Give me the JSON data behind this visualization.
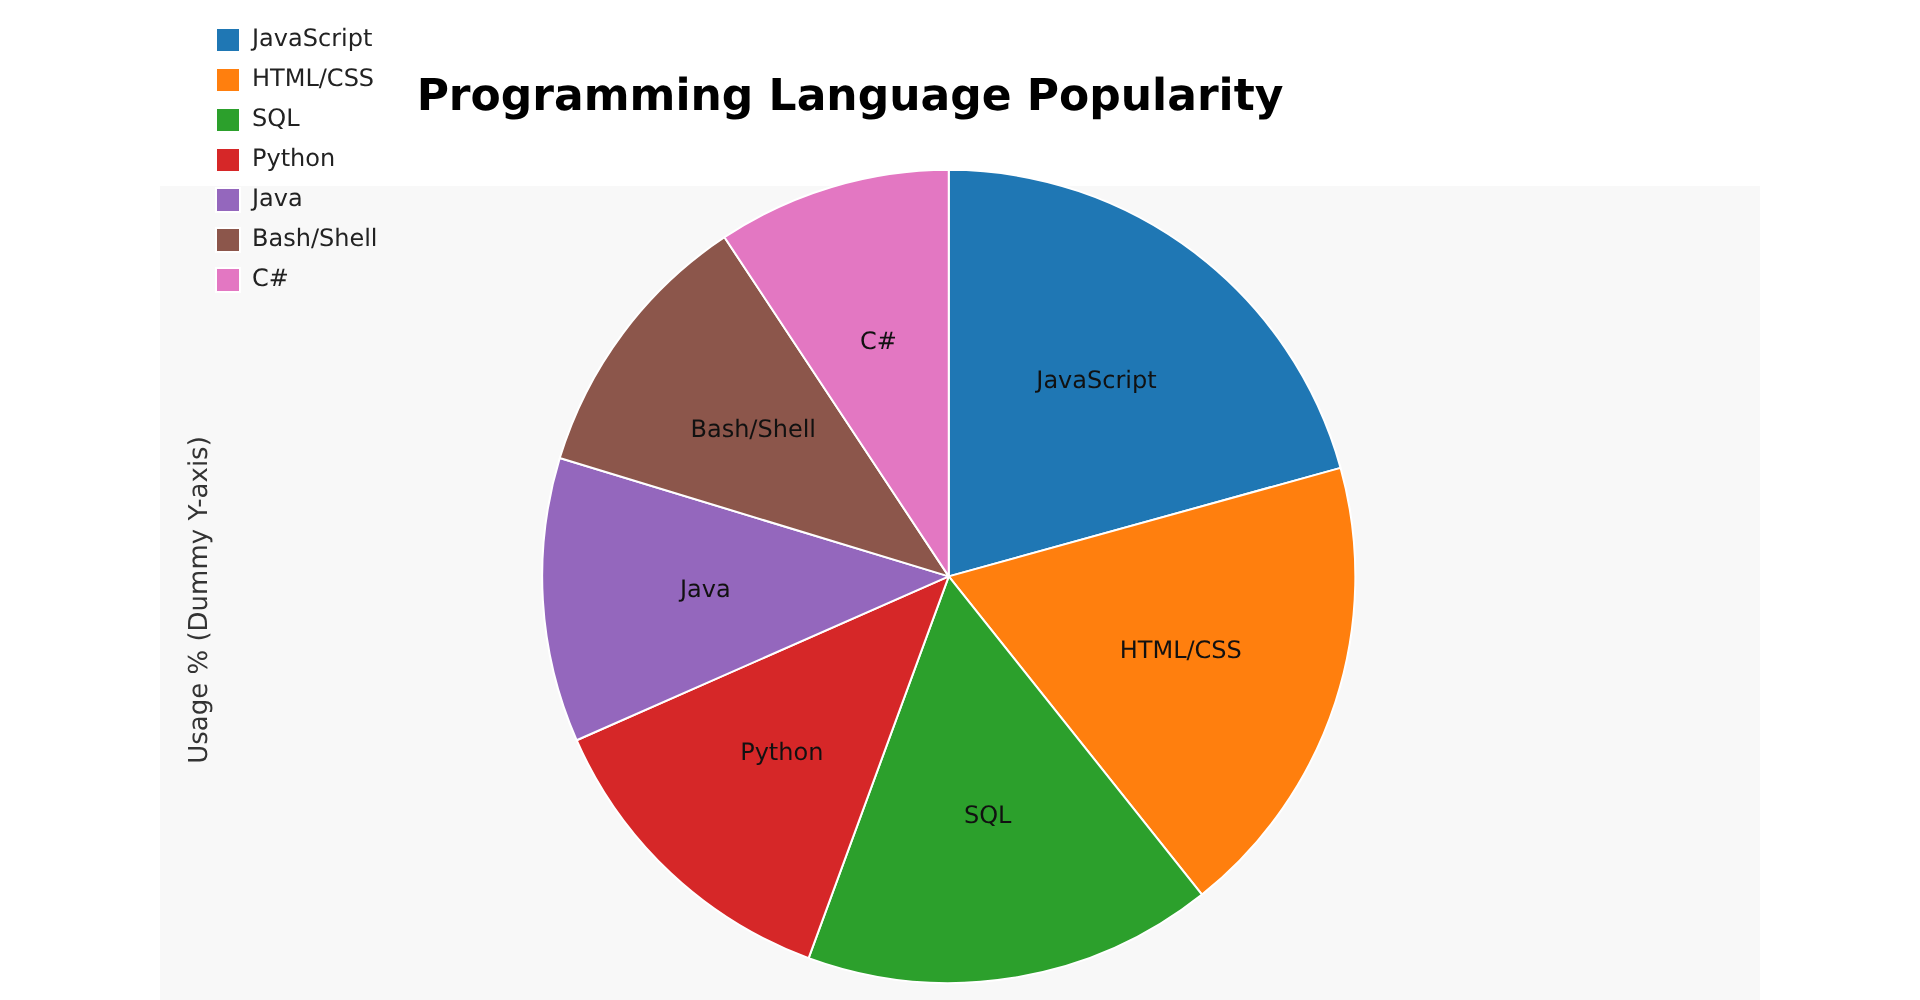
{
  "chart_data": {
    "type": "pie",
    "title": "Programming Language Popularity",
    "ylabel": "Usage % (Dummy Y-axis)",
    "categories": [
      "JavaScript",
      "HTML/CSS",
      "SQL",
      "Python",
      "Java",
      "Bash/Shell",
      "C#"
    ],
    "values": [
      20.7,
      18.6,
      16.3,
      12.8,
      11.3,
      11.0,
      9.3
    ],
    "colors": [
      "#1f77b4",
      "#ff7f0e",
      "#2ca02c",
      "#d62728",
      "#9467bd",
      "#8c564b",
      "#e377c2"
    ],
    "legend": "top left"
  }
}
